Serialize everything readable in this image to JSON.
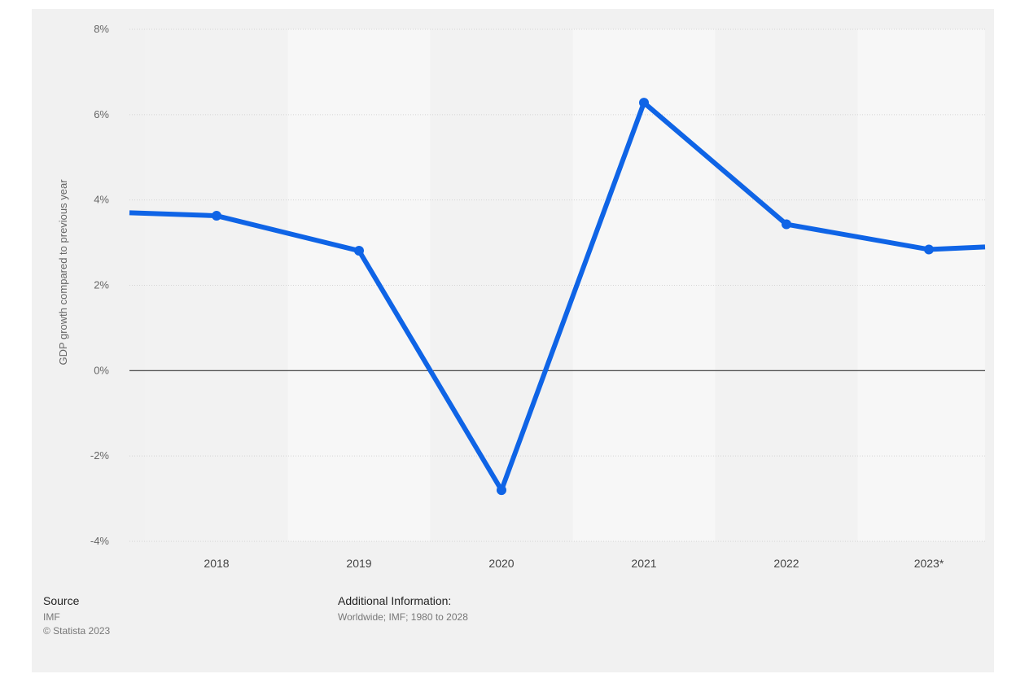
{
  "chart_data": {
    "type": "line",
    "title": "",
    "xlabel": "",
    "ylabel": "GDP growth compared to previous year",
    "categories": [
      "2018",
      "2019",
      "2020",
      "2021",
      "2022",
      "2023*"
    ],
    "series": [
      {
        "values": [
          3.63,
          2.81,
          -2.8,
          6.28,
          3.43,
          2.84
        ]
      }
    ],
    "edge_values": {
      "left": 3.7,
      "right": 2.9
    },
    "ylim": [
      -4,
      8
    ],
    "yticks": [
      -4,
      -2,
      0,
      2,
      4,
      6,
      8
    ],
    "ytick_labels": [
      "-4%",
      "-2%",
      "0%",
      "2%",
      "4%",
      "6%",
      "8%"
    ],
    "grid": true,
    "line_color": "#0f64e6"
  },
  "footer": {
    "source_label": "Source",
    "source_value": "IMF",
    "copyright": "© Statista 2023",
    "info_label": "Additional Information:",
    "info_value": "Worldwide; IMF; 1980 to 2028"
  },
  "colors": {
    "background": "#f1f1f1",
    "band_light": "#f7f7f7",
    "band_dark": "#f2f2f2",
    "zero_line": "#333333",
    "grid": "#d4d4d4"
  }
}
